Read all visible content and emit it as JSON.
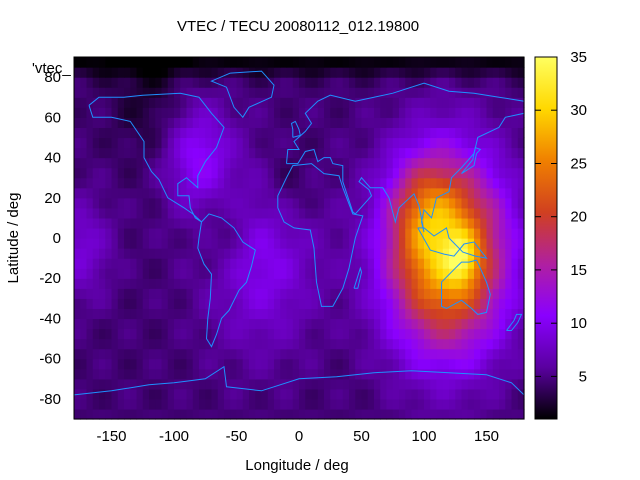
{
  "chart_data": {
    "type": "heatmap",
    "title": "VTEC / TECU 20080112_012.19800",
    "xlabel": "Longitude / deg",
    "ylabel": "Latitude / deg",
    "xlim": [
      -180,
      180
    ],
    "ylim": [
      -90,
      90
    ],
    "xticks": [
      -150,
      -100,
      -50,
      0,
      50,
      100,
      150
    ],
    "yticks": [
      -80,
      -60,
      -40,
      -20,
      0,
      20,
      40,
      60,
      80
    ],
    "colorbar": {
      "range": [
        1,
        35
      ],
      "ticks": [
        5,
        10,
        15,
        20,
        25,
        30,
        35
      ],
      "palette": [
        "#000000",
        "#5a00a0",
        "#8a00ff",
        "#b020a0",
        "#d04020",
        "#f08000",
        "#ffd800",
        "#ffff60"
      ]
    },
    "legend_label": "'vtec_",
    "coastline_color": "#1e90ff",
    "peak": {
      "lon": 125,
      "lat": -12,
      "value": 35
    },
    "grid": {
      "lon_step": 5,
      "lat_step": 5
    },
    "field_model": "base 4.5 + 5.6*exp(-dist_sq from (-30,-10), scale 1900) + 6.3*exp(-dist_sq from (-80,40), scale 700) + 24.5*exp(-dist_sq from (118,-8), scale 2200) + 8*exp(-dist_sq from (130,-10), scale 160) + 5.6*exp(-dist_sq from (100,15), scale 650); darkening near lat 85 and over NE America/N Africa/S America interior; values clipped to 1-35"
  }
}
